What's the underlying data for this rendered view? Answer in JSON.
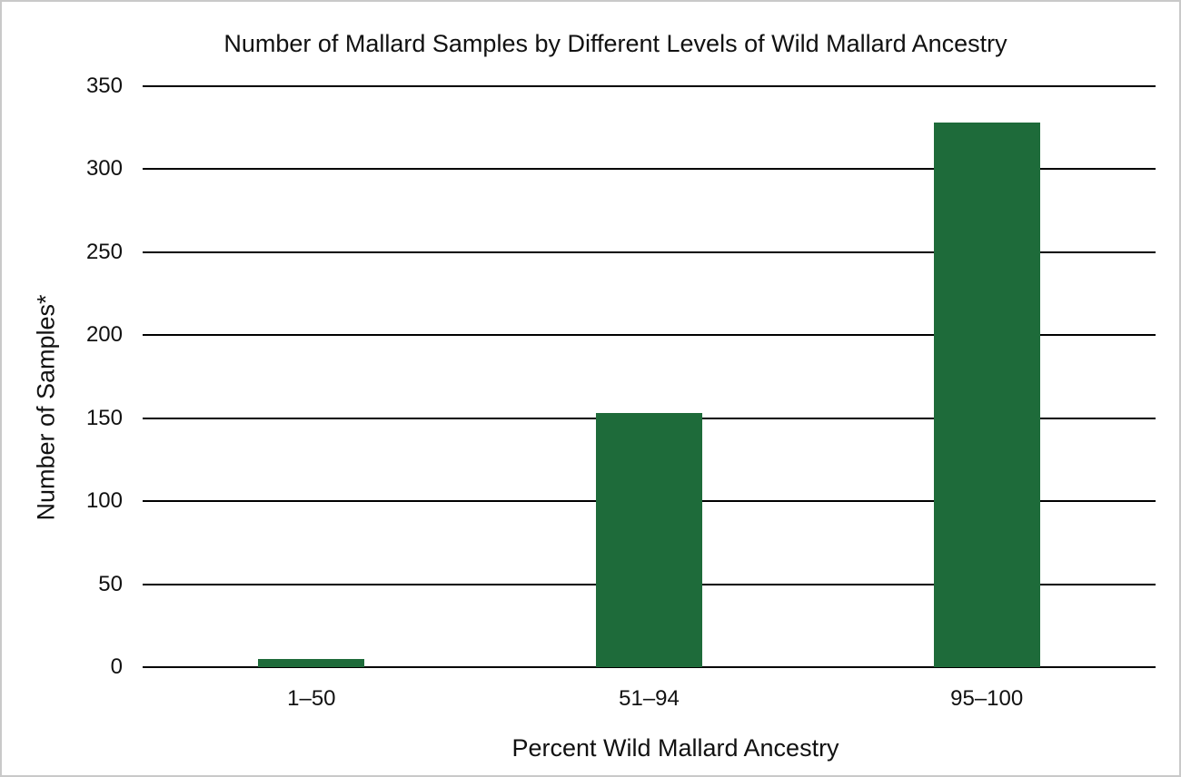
{
  "figure": {
    "background": "#ffffff",
    "frame_border_color": "#c9c9c9"
  },
  "chart_data": {
    "type": "bar",
    "title": "Number of Mallard Samples by Different Levels of Wild Mallard Ancestry",
    "xlabel": "Percent Wild Mallard Ancestry",
    "ylabel": "Number of Samples*",
    "categories": [
      "1–50",
      "51–94",
      "95–100"
    ],
    "values": [
      5,
      153,
      328
    ],
    "ylim": [
      0,
      350
    ],
    "yticks": [
      0,
      50,
      100,
      150,
      200,
      250,
      300,
      350
    ],
    "grid": true,
    "legend": "none",
    "bar_color": "#1e6b3a",
    "gridline_color": "#000000",
    "text_color": "#111111"
  }
}
